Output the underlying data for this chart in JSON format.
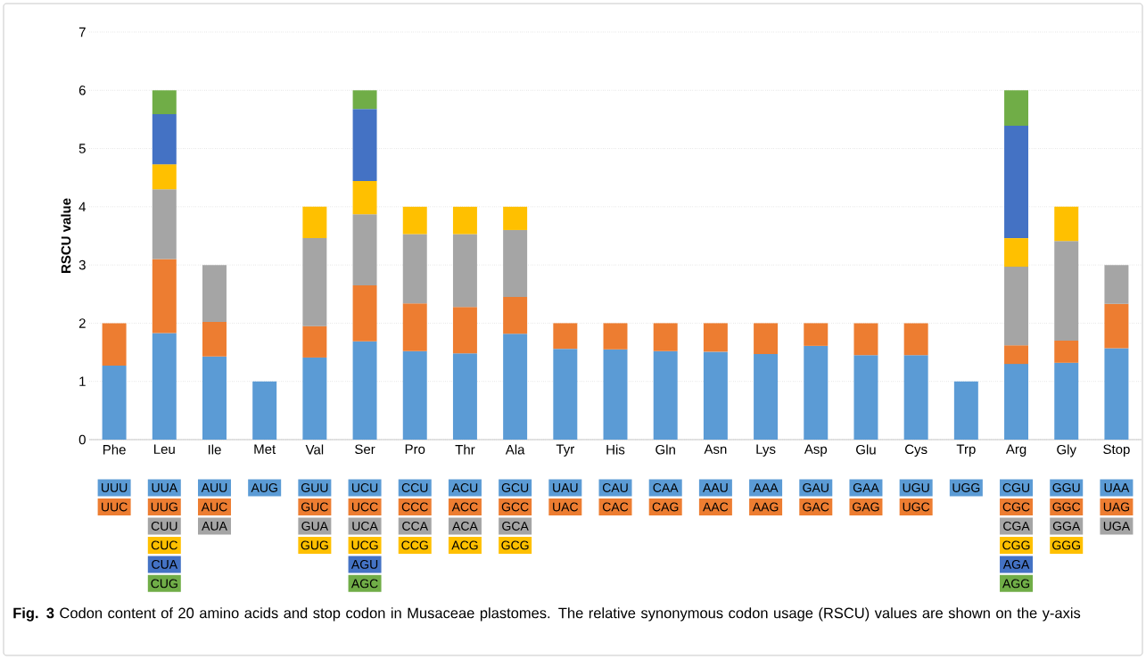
{
  "chart_data": {
    "type": "bar",
    "stacked": true,
    "ylabel": "RSCU value",
    "categories": [
      "Phe",
      "Leu",
      "Ile",
      "Met",
      "Val",
      "Ser",
      "Pro",
      "Thr",
      "Ala",
      "Tyr",
      "His",
      "Gln",
      "Asn",
      "Lys",
      "Asp",
      "Glu",
      "Cys",
      "Trp",
      "Arg",
      "Gly",
      "Stop"
    ],
    "series": [
      {
        "color": "#5b9bd5",
        "values": [
          1.27,
          1.83,
          1.43,
          1,
          1.41,
          1.69,
          1.52,
          1.48,
          1.82,
          1.56,
          1.55,
          1.52,
          1.51,
          1.47,
          1.61,
          1.45,
          1.45,
          1,
          1.3,
          1.32,
          1.57
        ]
      },
      {
        "color": "#ed7d31",
        "values": [
          0.73,
          1.27,
          0.59,
          null,
          0.54,
          0.96,
          0.82,
          0.8,
          0.63,
          0.44,
          0.45,
          0.48,
          0.49,
          0.53,
          0.39,
          0.55,
          0.55,
          null,
          0.32,
          0.38,
          0.76
        ]
      },
      {
        "color": "#a5a5a5",
        "values": [
          null,
          1.2,
          0.98,
          null,
          1.51,
          1.22,
          1.19,
          1.25,
          1.15,
          null,
          null,
          null,
          null,
          null,
          null,
          null,
          null,
          null,
          1.35,
          1.71,
          0.67
        ]
      },
      {
        "color": "#ffc000",
        "values": [
          null,
          0.43,
          null,
          null,
          0.54,
          0.57,
          0.47,
          0.47,
          0.4,
          null,
          null,
          null,
          null,
          null,
          null,
          null,
          null,
          null,
          0.49,
          0.59,
          null
        ]
      },
      {
        "color": "#4472c4",
        "values": [
          null,
          0.86,
          null,
          null,
          null,
          1.24,
          null,
          null,
          null,
          null,
          null,
          null,
          null,
          null,
          null,
          null,
          null,
          null,
          1.93,
          null,
          null
        ]
      },
      {
        "color": "#70ad47",
        "values": [
          null,
          0.41,
          null,
          null,
          null,
          0.32,
          null,
          null,
          null,
          null,
          null,
          null,
          null,
          null,
          null,
          null,
          null,
          null,
          0.61,
          null,
          null
        ]
      }
    ],
    "ylim": [
      0,
      7
    ],
    "yticks": [
      0,
      1,
      2,
      3,
      4,
      5,
      6,
      7
    ],
    "grid": "y",
    "annotations": [
      "UUU",
      "UUC",
      "UUA",
      "UUG",
      "CUU",
      "CUC",
      "CUA",
      "CUG",
      "AUU",
      "AUC",
      "AUA",
      "AUG",
      "GUU",
      "GUC",
      "GUA",
      "GUG",
      "UCU",
      "UCC",
      "UCA",
      "UCG",
      "AGU",
      "AGC",
      "CCU",
      "CCC",
      "CCA",
      "CCG",
      "ACU",
      "ACC",
      "ACA",
      "ACG",
      "GCU",
      "GCC",
      "GCA",
      "GCG",
      "UAU",
      "UAC",
      "CAU",
      "CAC",
      "CAA",
      "CAG",
      "AAU",
      "AAC",
      "AAA",
      "AAG",
      "GAU",
      "GAC",
      "GAA",
      "GAG",
      "UGU",
      "UGC",
      "UGG",
      "CGU",
      "CGC",
      "CGA",
      "CGG",
      "AGA",
      "AGG",
      "GGU",
      "GGC",
      "GGA",
      "GGG",
      "UAA",
      "UAG",
      "UGA",
      "**Fig. 3** Codon content of 20 amino acids and stop codon in Musaceae plastomes. The relative synonymous codon usage (RSCU) values are shown on the y-axis"
    ]
  }
}
